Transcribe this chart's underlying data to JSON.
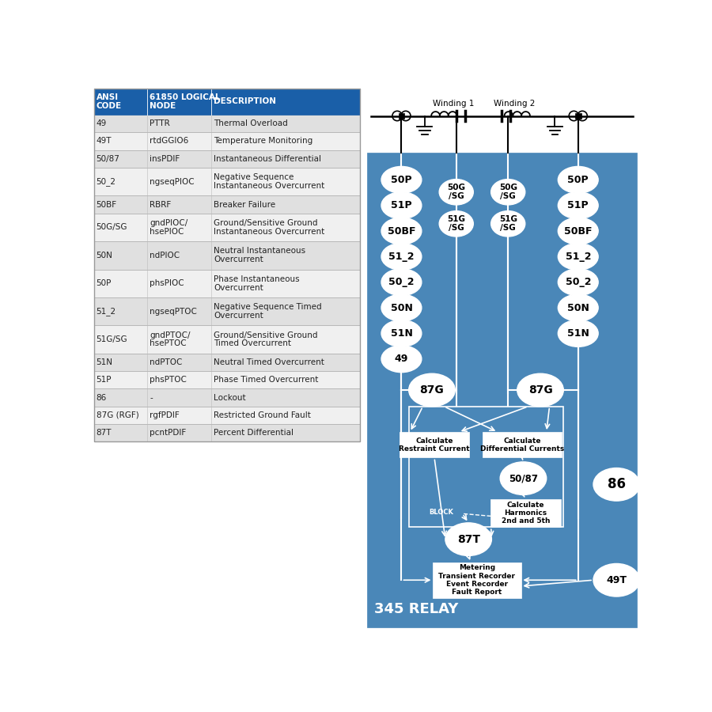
{
  "table_header_bg": "#1a5fa8",
  "table_row_bg_even": "#e0e0e0",
  "table_row_bg_odd": "#f0f0f0",
  "diagram_bg": "#4a87b8",
  "white": "#ffffff",
  "black": "#000000",
  "winding1_label": "Winding 1",
  "winding2_label": "Winding 2",
  "relay_label": "345 RELAY",
  "table_rows": [
    [
      "49",
      "PTTR",
      "Thermal Overload",
      false
    ],
    [
      "49T",
      "rtdGGIO6",
      "Temperature Monitoring",
      false
    ],
    [
      "50/87",
      "insPDIF",
      "Instantaneous Differential",
      false
    ],
    [
      "50_2",
      "ngseqPIOC",
      "Negative Sequence\nInstantaneous Overcurrent",
      true
    ],
    [
      "50BF",
      "RBRF",
      "Breaker Failure",
      false
    ],
    [
      "50G/SG",
      "gndPIOC/\nhsePIOC",
      "Ground/Sensitive Ground\nInstantaneous Overcurrent",
      true
    ],
    [
      "50N",
      "ndPIOC",
      "Neutral Instantaneous\nOvercurrent",
      true
    ],
    [
      "50P",
      "phsPIOC",
      "Phase Instantaneous\nOvercurrent",
      true
    ],
    [
      "51_2",
      "ngseqPTOC",
      "Negative Sequence Timed\nOvercurrent",
      true
    ],
    [
      "51G/SG",
      "gndPTOC/\nhsePTOC",
      "Ground/Sensitive Ground\nTimed Overcurrent",
      true
    ],
    [
      "51N",
      "ndPTOC",
      "Neutral Timed Overcurrent",
      false
    ],
    [
      "51P",
      "phsPTOC",
      "Phase Timed Overcurrent",
      false
    ],
    [
      "86",
      "-",
      "Lockout",
      false
    ],
    [
      "87G (RGF)",
      "rgfPDIF",
      "Restricted Ground Fault",
      false
    ],
    [
      "87T",
      "pcntPDIF",
      "Percent Differential",
      false
    ]
  ]
}
